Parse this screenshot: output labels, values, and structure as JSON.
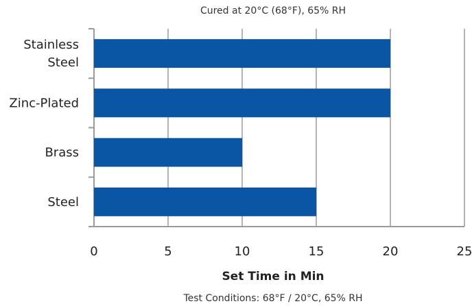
{
  "chart_data": {
    "type": "bar",
    "orientation": "horizontal",
    "subtitle": "Cured at 20°C (68°F), 65% RH",
    "categories": [
      [
        "Stainless",
        "Steel"
      ],
      [
        "Zinc-Plated"
      ],
      [
        "Brass"
      ],
      [
        "Steel"
      ]
    ],
    "values": [
      20,
      20,
      10,
      15
    ],
    "xlabel": "Set Time in Min",
    "xlim": [
      0,
      25
    ],
    "xticks": [
      0,
      5,
      10,
      15,
      20,
      25
    ],
    "grid": true,
    "bar_color": "#0a56a5",
    "footnote": "Test Conditions: 68°F / 20°C, 65% RH"
  }
}
